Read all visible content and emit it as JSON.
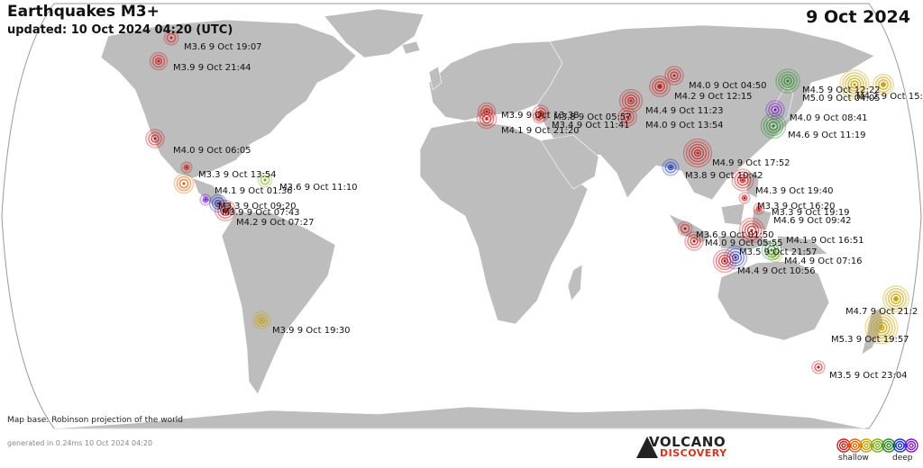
{
  "header": {
    "title": "Earthquakes M3+",
    "updated": "updated: 10 Oct 2024 04:20 (UTC)",
    "date": "9 Oct 2024"
  },
  "footer": {
    "map_base": "Map base: Robinson projection of the world",
    "generated": "generated in 0.24ms 10 Oct 2024 04:20"
  },
  "logo": {
    "line1": "VOLCANO",
    "line2": "DISCOVERY"
  },
  "legend": {
    "shallow": "shallow",
    "deep": "deep",
    "colors": [
      "#cc1b1b",
      "#dd6611",
      "#c8a000",
      "#7fae1c",
      "#2a8a2a",
      "#1b36c8",
      "#7a1bcc"
    ]
  },
  "map": {
    "ocean_color": "#ffffff",
    "land_color": "#bdbdbd",
    "border_color": "#ffffff"
  },
  "labels": [
    "M3.6  9 Oct 19:07",
    "M3.9  9 Oct 21:44",
    "M4.0  9 Oct 06:05",
    "M3.3  9 Oct 13:54",
    "M3.6  9 Oct 11:10",
    "M4.1  9 Oct 01:36",
    "M3.3  9 Oct 09:20",
    "M3.9  9 Oct 07:43",
    "M4.2  9 Oct 07:27",
    "M3.9  9 Oct 19:30",
    "M3.9  9 Oct 13:38",
    "M3.8  9 Oct 05:57",
    "M3.4  9 Oct 11:41",
    "M4.1  9 Oct 21:20",
    "M4.0  9 Oct 04:50",
    "M4.2  9 Oct 12:15",
    "M4.4  9 Oct 11:23",
    "M4.0  9 Oct 13:54",
    "M4.9  9 Oct 17:52",
    "M3.8  9 Oct 10:42",
    "M4.3  9 Oct 19:40",
    "M3.3  9 Oct 16:20",
    "M3.3  9 Oct 19:19",
    "M4.6  9 Oct 09:42",
    "M3.6  9 Oct 01:50",
    "M4.0  9 Oct 05:55",
    "M4.1  9 Oct 16:51",
    "M4.4  9 Oct 07:16",
    "M4.4  9 Oct 10:56",
    "M3.5  9 Oct 21:57",
    "M4.0  9 Oct 08:41",
    "M4.6  9 Oct 11:19",
    "M4.5  9 Oct 12:22",
    "M5.0  9 Oct 04:05",
    "M4.2  9 Oct 15:1",
    "M4.7  9 Oct 21:2",
    "M5.3  9 Oct 19:57",
    "M3.5  9 Oct 23:04"
  ],
  "quakes": [
    {
      "mag": 3.6,
      "time": "19:07",
      "color": "#cc1b1b"
    },
    {
      "mag": 3.9,
      "time": "21:44",
      "color": "#cc1b1b"
    },
    {
      "mag": 4.0,
      "time": "06:05",
      "color": "#cc1b1b"
    },
    {
      "mag": 3.3,
      "time": "13:54",
      "color": "#cc1b1b"
    },
    {
      "mag": 3.6,
      "time": "11:10",
      "color": "#7fae1c"
    },
    {
      "mag": 4.1,
      "time": "01:36",
      "color": "#dd6611"
    },
    {
      "mag": 3.3,
      "time": "09:20",
      "color": "#7a1bcc"
    },
    {
      "mag": 3.9,
      "time": "07:43",
      "color": "#1b36c8"
    },
    {
      "mag": 4.2,
      "time": "07:27",
      "color": "#cc1b1b"
    },
    {
      "mag": 3.9,
      "time": "19:30",
      "color": "#c8a000"
    },
    {
      "mag": 3.9,
      "time": "13:38",
      "color": "#cc1b1b"
    },
    {
      "mag": 3.8,
      "time": "05:57",
      "color": "#cc1b1b"
    },
    {
      "mag": 3.4,
      "time": "11:41",
      "color": "#cc1b1b"
    },
    {
      "mag": 4.1,
      "time": "21:20",
      "color": "#cc1b1b"
    },
    {
      "mag": 4.0,
      "time": "04:50",
      "color": "#cc1b1b"
    },
    {
      "mag": 4.2,
      "time": "12:15",
      "color": "#cc1b1b"
    },
    {
      "mag": 4.4,
      "time": "11:23",
      "color": "#cc1b1b"
    },
    {
      "mag": 4.0,
      "time": "13:54",
      "color": "#cc1b1b"
    },
    {
      "mag": 4.9,
      "time": "17:52",
      "color": "#cc1b1b"
    },
    {
      "mag": 3.8,
      "time": "10:42",
      "color": "#1b36c8"
    },
    {
      "mag": 4.3,
      "time": "19:40",
      "color": "#cc1b1b"
    },
    {
      "mag": 3.3,
      "time": "16:20",
      "color": "#cc1b1b"
    },
    {
      "mag": 3.3,
      "time": "19:19",
      "color": "#cc1b1b"
    },
    {
      "mag": 4.6,
      "time": "09:42",
      "color": "#cc1b1b"
    },
    {
      "mag": 3.6,
      "time": "01:50",
      "color": "#cc1b1b"
    },
    {
      "mag": 4.0,
      "time": "05:55",
      "color": "#cc1b1b"
    },
    {
      "mag": 4.1,
      "time": "16:51",
      "color": "#2a8a2a"
    },
    {
      "mag": 4.4,
      "time": "07:16",
      "color": "#1b36c8"
    },
    {
      "mag": 4.4,
      "time": "10:56",
      "color": "#cc1b1b"
    },
    {
      "mag": 3.5,
      "time": "21:57",
      "color": "#7fae1c"
    },
    {
      "mag": 4.0,
      "time": "08:41",
      "color": "#7a1bcc"
    },
    {
      "mag": 4.6,
      "time": "11:19",
      "color": "#2a8a2a"
    },
    {
      "mag": 4.5,
      "time": "12:22",
      "color": "#2a8a2a"
    },
    {
      "mag": 5.0,
      "time": "04:05",
      "color": "#c8a000"
    },
    {
      "mag": 4.2,
      "time": "15:1",
      "color": "#c8a000"
    },
    {
      "mag": 4.7,
      "time": "21:2",
      "color": "#c8a000"
    },
    {
      "mag": 5.3,
      "time": "19:57",
      "color": "#c8a000"
    },
    {
      "mag": 3.5,
      "time": "23:04",
      "color": "#cc1b1b"
    }
  ]
}
